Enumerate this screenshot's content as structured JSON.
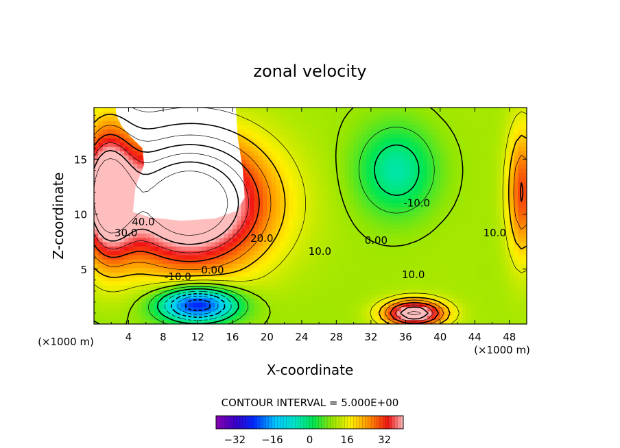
{
  "chart_data": {
    "type": "heatmap",
    "title": "zonal velocity",
    "xlabel": "X-coordinate",
    "ylabel": "Z-coordinate",
    "x_unit": "(×1000 m)",
    "x_unit_right": "(×1000 m)",
    "xlim": [
      0,
      50
    ],
    "ylim": [
      0,
      19.7
    ],
    "x_ticks": [
      "4",
      "8",
      "12",
      "16",
      "20",
      "24",
      "28",
      "32",
      "36",
      "40",
      "44",
      "48"
    ],
    "y_ticks": [
      "5",
      "10",
      "15"
    ],
    "contour_interval_text": "CONTOUR INTERVAL = 5.000E+00",
    "contour_labels": [
      {
        "text": "40.0",
        "x": 5.7,
        "y": 9.3
      },
      {
        "text": "30.0",
        "x": 3.7,
        "y": 8.3
      },
      {
        "text": "20.0",
        "x": 19.4,
        "y": 7.8
      },
      {
        "text": "10.0",
        "x": 26.1,
        "y": 6.6
      },
      {
        "text": "0.00",
        "x": 32.6,
        "y": 7.6
      },
      {
        "text": "-10.0",
        "x": 37.3,
        "y": 11.0
      },
      {
        "text": "10.0",
        "x": 46.3,
        "y": 8.3
      },
      {
        "text": "10.0",
        "x": 36.9,
        "y": 4.5
      },
      {
        "text": "0.00",
        "x": 13.7,
        "y": 4.9
      },
      {
        "text": "-10.0",
        "x": 9.7,
        "y": 4.3
      }
    ],
    "colorbar": {
      "min": -40,
      "max": 40,
      "ticks": [
        "-32",
        "-16",
        "0",
        "16",
        "32"
      ],
      "tick_values": [
        -32,
        -16,
        0,
        16,
        32
      ]
    },
    "features": [
      {
        "kind": "jet",
        "x": 12,
        "z": 1.8,
        "u": -38,
        "sx": 4.5,
        "sz": 1.6
      },
      {
        "kind": "jet",
        "x": 11,
        "z": 11,
        "u": 45,
        "sx": 9,
        "sz": 6
      },
      {
        "kind": "jet",
        "x": 1.5,
        "z": 12,
        "u": 34,
        "sx": 3,
        "sz": 6
      },
      {
        "kind": "jet",
        "x": 37,
        "z": 1.0,
        "u": 36,
        "sx": 3.5,
        "sz": 1.2
      },
      {
        "kind": "jet",
        "x": 35,
        "z": 14,
        "u": -15,
        "sx": 4.5,
        "sz": 4
      },
      {
        "kind": "jet",
        "x": 49.5,
        "z": 12,
        "u": 20,
        "sx": 1.8,
        "sz": 6
      }
    ]
  }
}
